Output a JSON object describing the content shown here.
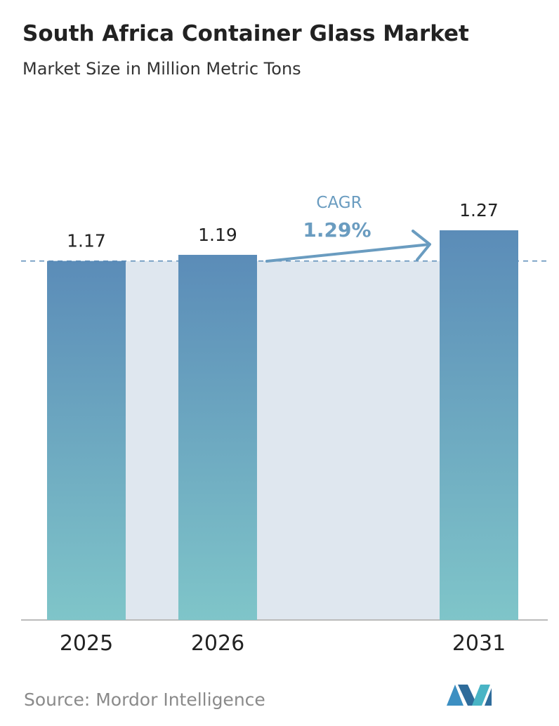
{
  "chart_data": {
    "type": "bar",
    "title": "South Africa Container Glass Market",
    "subtitle": "Market Size in Million Metric Tons",
    "categories": [
      "2025",
      "2026",
      "2031"
    ],
    "values": [
      1.17,
      1.19,
      1.27
    ],
    "annotation": {
      "label": "CAGR",
      "value": "1.29%"
    },
    "source": "Source: Mordor Intelligence",
    "colors": {
      "top": "#5b8cb8",
      "bottom": "#7fc5c9",
      "band": "#dfe7ef",
      "dash": "#5b8cb8",
      "arrow": "#6a9cc0"
    }
  }
}
